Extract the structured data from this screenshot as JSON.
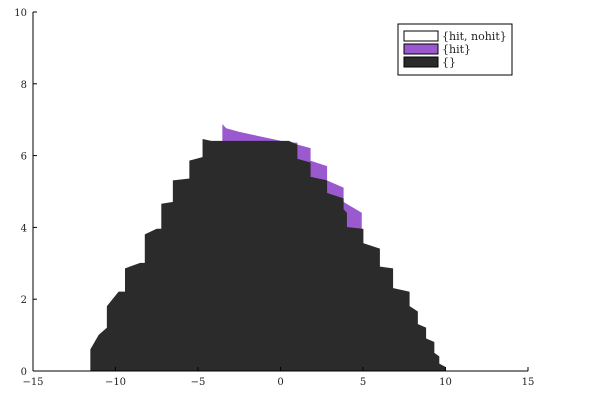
{
  "chart_data": {
    "type": "area",
    "title": "",
    "xlabel": "",
    "ylabel": "",
    "xlim": [
      -15,
      15
    ],
    "ylim": [
      0,
      10
    ],
    "xticks": [
      "−15",
      "−10",
      "−5",
      "0",
      "5",
      "10",
      "15"
    ],
    "yticks": [
      "0",
      "2",
      "4",
      "6",
      "8",
      "10"
    ],
    "legend_position": "top-right",
    "grid": false,
    "series": [
      {
        "name": "{hit, nohit}",
        "color": "#ffffff",
        "points": []
      },
      {
        "name": "{hit}",
        "color": "#9b59d0",
        "points": [
          [
            -3.5,
            6.85
          ],
          [
            -3.3,
            6.75
          ],
          [
            -2.5,
            6.65
          ],
          [
            -1.5,
            6.55
          ],
          [
            -0.5,
            6.45
          ],
          [
            0.5,
            6.35
          ],
          [
            1.0,
            6.35
          ],
          [
            1.0,
            6.3
          ],
          [
            1.8,
            6.2
          ],
          [
            1.8,
            5.85
          ],
          [
            2.8,
            5.7
          ],
          [
            2.8,
            5.3
          ],
          [
            3.8,
            5.1
          ],
          [
            3.8,
            4.7
          ],
          [
            4.9,
            4.4
          ],
          [
            4.9,
            4.0
          ]
        ]
      },
      {
        "name": "{}",
        "color": "#2b2b2b",
        "points": [
          [
            -11.5,
            0.0
          ],
          [
            -11.5,
            0.6
          ],
          [
            -11.0,
            1.0
          ],
          [
            -10.5,
            1.2
          ],
          [
            -10.5,
            1.8
          ],
          [
            -9.8,
            2.2
          ],
          [
            -9.4,
            2.2
          ],
          [
            -9.4,
            2.85
          ],
          [
            -8.5,
            3.0
          ],
          [
            -8.2,
            3.0
          ],
          [
            -8.2,
            3.8
          ],
          [
            -7.5,
            3.95
          ],
          [
            -7.2,
            3.95
          ],
          [
            -7.2,
            4.65
          ],
          [
            -6.5,
            4.7
          ],
          [
            -6.5,
            5.3
          ],
          [
            -5.5,
            5.35
          ],
          [
            -5.5,
            5.85
          ],
          [
            -4.7,
            5.95
          ],
          [
            -4.7,
            6.45
          ],
          [
            -4.2,
            6.4
          ],
          [
            -3.5,
            6.4
          ],
          [
            0.5,
            6.4
          ],
          [
            1.0,
            6.3
          ],
          [
            1.0,
            5.9
          ],
          [
            1.8,
            5.8
          ],
          [
            1.8,
            5.4
          ],
          [
            2.8,
            5.3
          ],
          [
            2.8,
            4.95
          ],
          [
            3.8,
            4.8
          ],
          [
            3.8,
            4.5
          ],
          [
            4.0,
            4.4
          ],
          [
            4.0,
            4.0
          ],
          [
            5.0,
            3.95
          ],
          [
            5.0,
            3.55
          ],
          [
            6.0,
            3.4
          ],
          [
            6.0,
            2.9
          ],
          [
            6.8,
            2.85
          ],
          [
            6.8,
            2.3
          ],
          [
            7.8,
            2.2
          ],
          [
            7.8,
            1.8
          ],
          [
            8.3,
            1.65
          ],
          [
            8.3,
            1.3
          ],
          [
            8.8,
            1.2
          ],
          [
            8.8,
            0.9
          ],
          [
            9.3,
            0.8
          ],
          [
            9.3,
            0.5
          ],
          [
            9.6,
            0.4
          ],
          [
            9.6,
            0.2
          ],
          [
            10.0,
            0.1
          ],
          [
            10.0,
            0.0
          ]
        ]
      }
    ]
  }
}
